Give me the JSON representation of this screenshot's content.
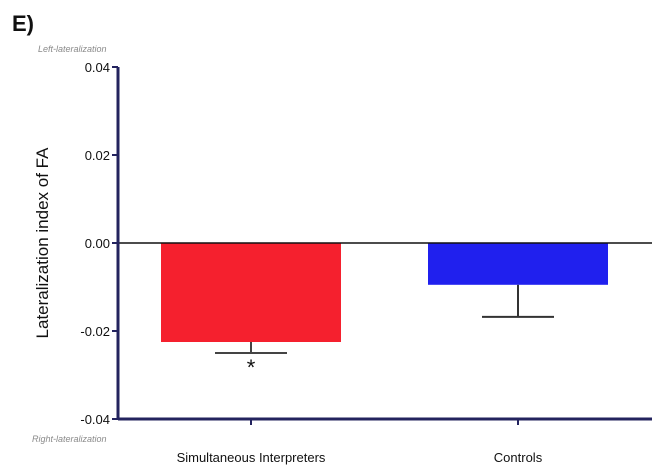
{
  "panel_label": "E)",
  "chart_data": {
    "type": "bar",
    "categories": [
      "Simultaneous Interpreters",
      "Controls"
    ],
    "values": [
      -0.0225,
      -0.0095
    ],
    "error_low": [
      0.0025,
      0.0073
    ],
    "colors": [
      "#f5202e",
      "#2020ee"
    ],
    "title": "",
    "xlabel": "",
    "ylabel": "Lateralization index of FA",
    "ylim": [
      -0.04,
      0.04
    ],
    "yticks": [
      0.04,
      0.02,
      0.0,
      -0.02,
      -0.04
    ],
    "ytick_labels": [
      "0.04",
      "0.02",
      "0.00",
      "-0.02",
      "-0.04"
    ],
    "top_note": "Left-lateralization",
    "bottom_note": "Right-lateralization",
    "significance_marker": "*",
    "significant_index": 0,
    "grid": false,
    "legend": "none"
  }
}
